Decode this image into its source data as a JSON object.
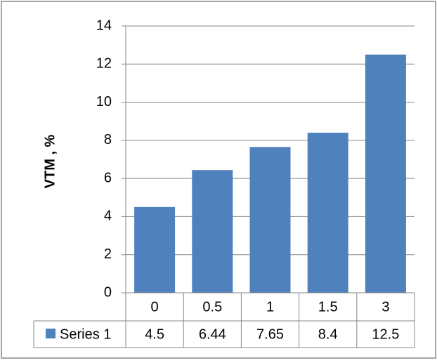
{
  "chart_data": {
    "type": "bar",
    "title": "",
    "xlabel": "",
    "ylabel": "VTM , %",
    "categories": [
      "0",
      "0.5",
      "1",
      "1.5",
      "3"
    ],
    "series": [
      {
        "name": "Series 1",
        "values": [
          4.5,
          6.44,
          7.65,
          8.4,
          12.5
        ],
        "color": "#4F81BD"
      }
    ],
    "ylim": [
      0,
      14
    ],
    "yticks": [
      0,
      2,
      4,
      6,
      8,
      10,
      12,
      14
    ],
    "grid": true,
    "legend": "data-table",
    "data_table": {
      "row_label": "Series 1",
      "values": [
        "4.5",
        "6.44",
        "7.65",
        "8.4",
        "12.5"
      ]
    }
  },
  "colors": {
    "bar": "#4F81BD",
    "grid": "#878787",
    "border": "#878787"
  }
}
